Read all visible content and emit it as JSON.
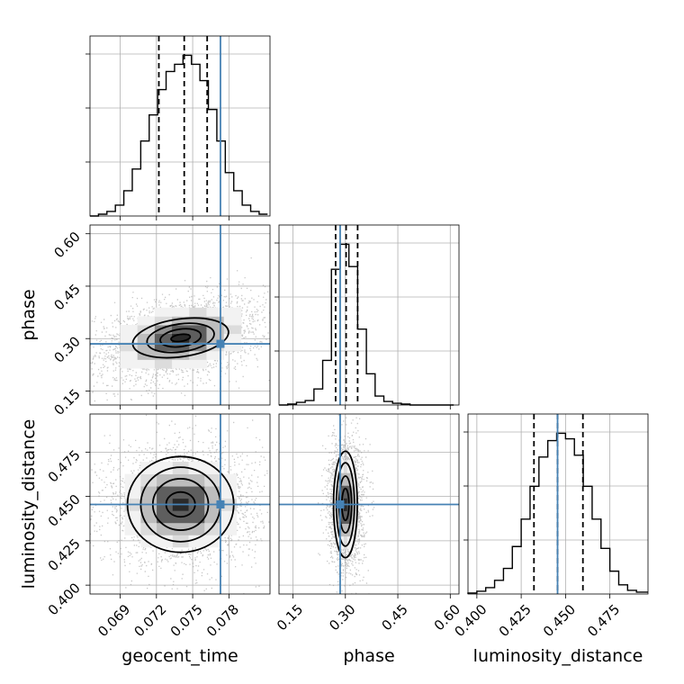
{
  "chart_data": {
    "type": "corner",
    "colors": {
      "truth": "#4682b4",
      "hist": "#000000",
      "scatter": "#9a9a9a",
      "grid": "#b0b0b0"
    },
    "parameters": [
      {
        "name": "geocent_time",
        "label": "geocent_time",
        "range": [
          0.0665,
          0.0814
        ],
        "ticks": [
          "0.069",
          "0.072",
          "0.075",
          "0.078"
        ],
        "tick_values": [
          0.069,
          0.072,
          0.075,
          0.078
        ],
        "truth": 0.0773,
        "median": 0.0743,
        "q_low": 0.0722,
        "q_high": 0.0762,
        "hist_bins": [
          0.0665,
          0.0672,
          0.0679,
          0.0686,
          0.0693,
          0.07,
          0.0707,
          0.0714,
          0.0721,
          0.0728,
          0.0735,
          0.0742,
          0.0749,
          0.0756,
          0.0763,
          0.077,
          0.0777,
          0.0784,
          0.0791,
          0.0798,
          0.0805,
          0.0812
        ],
        "hist_counts": [
          0,
          2,
          5,
          12,
          28,
          52,
          83,
          112,
          140,
          160,
          168,
          178,
          168,
          150,
          118,
          83,
          48,
          28,
          12,
          5,
          2
        ]
      },
      {
        "name": "phase",
        "label": "phase",
        "range": [
          0.11,
          0.625
        ],
        "ticks": [
          "0.15",
          "0.30",
          "0.45",
          "0.60"
        ],
        "tick_values": [
          0.15,
          0.3,
          0.45,
          0.6
        ],
        "truth": 0.285,
        "median": 0.302,
        "q_low": 0.272,
        "q_high": 0.335,
        "hist_bins": [
          0.11,
          0.135,
          0.16,
          0.185,
          0.21,
          0.235,
          0.26,
          0.285,
          0.31,
          0.335,
          0.36,
          0.385,
          0.41,
          0.435,
          0.46,
          0.485,
          0.51,
          0.535,
          0.56,
          0.585,
          0.61
        ],
        "hist_counts": [
          0,
          1,
          3,
          5,
          18,
          50,
          152,
          180,
          155,
          85,
          35,
          10,
          4,
          2,
          1,
          0,
          0,
          0,
          0,
          0
        ]
      },
      {
        "name": "luminosity_distance",
        "label": "luminosity_distance",
        "range": [
          0.395,
          0.4965
        ],
        "ticks": [
          "0.400",
          "0.425",
          "0.450",
          "0.475"
        ],
        "tick_values": [
          0.4,
          0.425,
          0.45,
          0.475
        ],
        "truth": 0.4455,
        "median": 0.4455,
        "q_low": 0.4322,
        "q_high": 0.4598,
        "hist_bins": [
          0.395,
          0.4,
          0.405,
          0.41,
          0.415,
          0.42,
          0.425,
          0.43,
          0.435,
          0.44,
          0.445,
          0.45,
          0.455,
          0.46,
          0.465,
          0.47,
          0.475,
          0.48,
          0.485,
          0.49,
          0.4965
        ],
        "hist_counts": [
          1,
          3,
          7,
          15,
          28,
          52,
          82,
          118,
          150,
          168,
          176,
          170,
          152,
          118,
          82,
          50,
          25,
          10,
          4,
          2
        ]
      }
    ],
    "pairs": [
      {
        "x": "geocent_time",
        "y": "phase",
        "center": [
          0.074,
          0.302
        ],
        "spread": [
          0.0026,
          0.045
        ],
        "rho": 0.35,
        "contours": [
          [
            0.0008,
            0.01
          ],
          [
            0.0017,
            0.025
          ],
          [
            0.0028,
            0.04
          ],
          [
            0.004,
            0.054
          ]
        ]
      },
      {
        "x": "geocent_time",
        "y": "luminosity_distance",
        "center": [
          0.074,
          0.4455
        ],
        "spread": [
          0.0024,
          0.0125
        ],
        "rho": 0.0,
        "contours": [
          [
            0.0012,
            0.007
          ],
          [
            0.0023,
            0.0145
          ],
          [
            0.0033,
            0.021
          ],
          [
            0.0044,
            0.027
          ]
        ]
      },
      {
        "x": "phase",
        "y": "luminosity_distance",
        "center": [
          0.3,
          0.4455
        ],
        "spread": [
          0.018,
          0.013
        ],
        "rho": 0.0,
        "contours": [
          [
            0.01,
            0.009
          ],
          [
            0.018,
            0.016
          ],
          [
            0.026,
            0.0235
          ],
          [
            0.034,
            0.03
          ]
        ]
      }
    ],
    "axis_labels": {
      "x": [
        "geocent_time",
        "phase",
        "luminosity_distance"
      ],
      "y": [
        "phase",
        "luminosity_distance"
      ]
    },
    "grid": true
  }
}
